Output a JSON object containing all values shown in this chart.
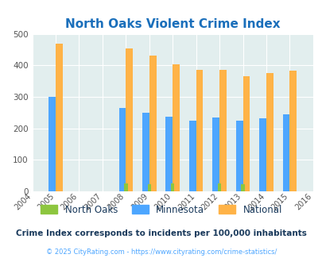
{
  "title": "North Oaks Violent Crime Index",
  "title_color": "#1a6fbb",
  "years": [
    2004,
    2005,
    2006,
    2007,
    2008,
    2009,
    2010,
    2011,
    2012,
    2013,
    2014,
    2015,
    2016
  ],
  "north_oaks": [
    null,
    null,
    null,
    null,
    24,
    22,
    26,
    null,
    26,
    22,
    null,
    null,
    null
  ],
  "minnesota": [
    null,
    299,
    null,
    null,
    265,
    249,
    237,
    224,
    234,
    225,
    231,
    245,
    null
  ],
  "national": [
    null,
    469,
    null,
    null,
    455,
    432,
    405,
    387,
    387,
    366,
    377,
    383,
    null
  ],
  "bar_width": 0.3,
  "north_oaks_color": "#8dc63f",
  "minnesota_color": "#4da6ff",
  "national_color": "#ffb347",
  "bg_color": "#e2eeee",
  "ylim": [
    0,
    500
  ],
  "yticks": [
    0,
    100,
    200,
    300,
    400,
    500
  ],
  "subtitle": "Crime Index corresponds to incidents per 100,000 inhabitants",
  "subtitle_color": "#1a3a5c",
  "copyright": "© 2025 CityRating.com - https://www.cityrating.com/crime-statistics/",
  "copyright_color": "#4da6ff",
  "legend_labels": [
    "North Oaks",
    "Minnesota",
    "National"
  ],
  "legend_colors": [
    "#8dc63f",
    "#4da6ff",
    "#ffb347"
  ]
}
